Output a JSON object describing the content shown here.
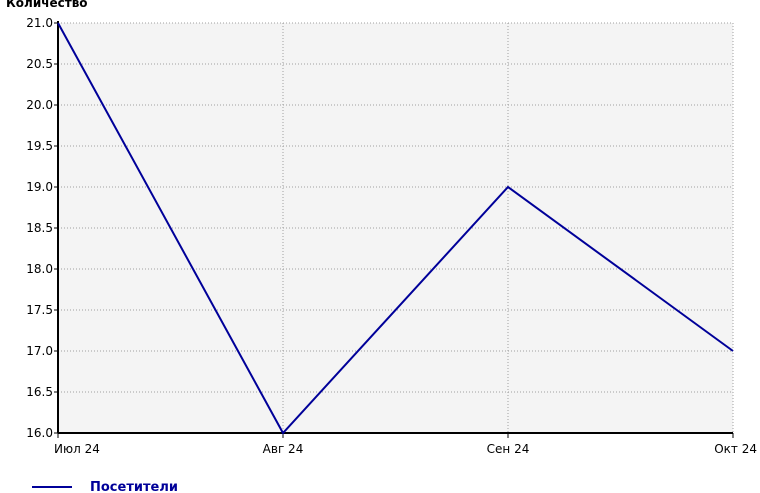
{
  "chart_data": {
    "type": "line",
    "title": "",
    "xlabel": "",
    "ylabel": "Количество",
    "categories": [
      "Июл 24",
      "Авг 24",
      "Сен 24",
      "Окт 24"
    ],
    "series": [
      {
        "name": "Посетители",
        "color": "#000099",
        "values": [
          21.0,
          16.0,
          19.0,
          17.0
        ]
      }
    ],
    "ylim": [
      16.0,
      21.0
    ],
    "yticks": [
      "16.0",
      "16.5",
      "17.0",
      "17.5",
      "18.0",
      "18.5",
      "19.0",
      "19.5",
      "20.0",
      "20.5",
      "21.0"
    ],
    "grid": true,
    "legend_position": "bottom-left",
    "plot_background": "#f4f4f4"
  }
}
